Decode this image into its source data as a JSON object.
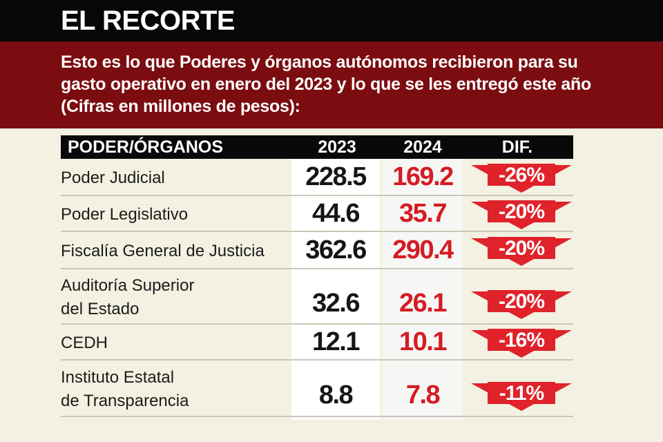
{
  "header": {
    "title": "EL RECORTE",
    "subtitle": "Esto es lo que Poderes y órganos autónomos recibieron para su gasto operativo en enero del 2023 y lo que se les entregó este año (Cifras en millones de pesos):"
  },
  "colors": {
    "top_bar": "#070707",
    "sub_bar": "#7b0c10",
    "value_2024": "#d41c24",
    "arrow": "#e0222a"
  },
  "chart_data": {
    "type": "table",
    "columns": [
      "PODER/ÓRGANOS",
      "2023",
      "2024",
      "DIF."
    ],
    "rows": [
      {
        "name_lines": [
          "Poder Judicial"
        ],
        "v2023": "228.5",
        "v2024": "169.2",
        "dif": "-26%"
      },
      {
        "name_lines": [
          "Poder Legislativo"
        ],
        "v2023": "44.6",
        "v2024": "35.7",
        "dif": "-20%"
      },
      {
        "name_lines": [
          "Fiscalía General de Justicia"
        ],
        "v2023": "362.6",
        "v2024": "290.4",
        "dif": "-20%"
      },
      {
        "name_lines": [
          "Auditoría Superior",
          "del Estado"
        ],
        "v2023": "32.6",
        "v2024": "26.1",
        "dif": "-20%"
      },
      {
        "name_lines": [
          "CEDH"
        ],
        "v2023": "12.1",
        "v2024": "10.1",
        "dif": "-16%"
      },
      {
        "name_lines": [
          "Instituto Estatal",
          "de Transparencia"
        ],
        "v2023": "8.8",
        "v2024": "7.8",
        "dif": "-11%"
      }
    ]
  }
}
